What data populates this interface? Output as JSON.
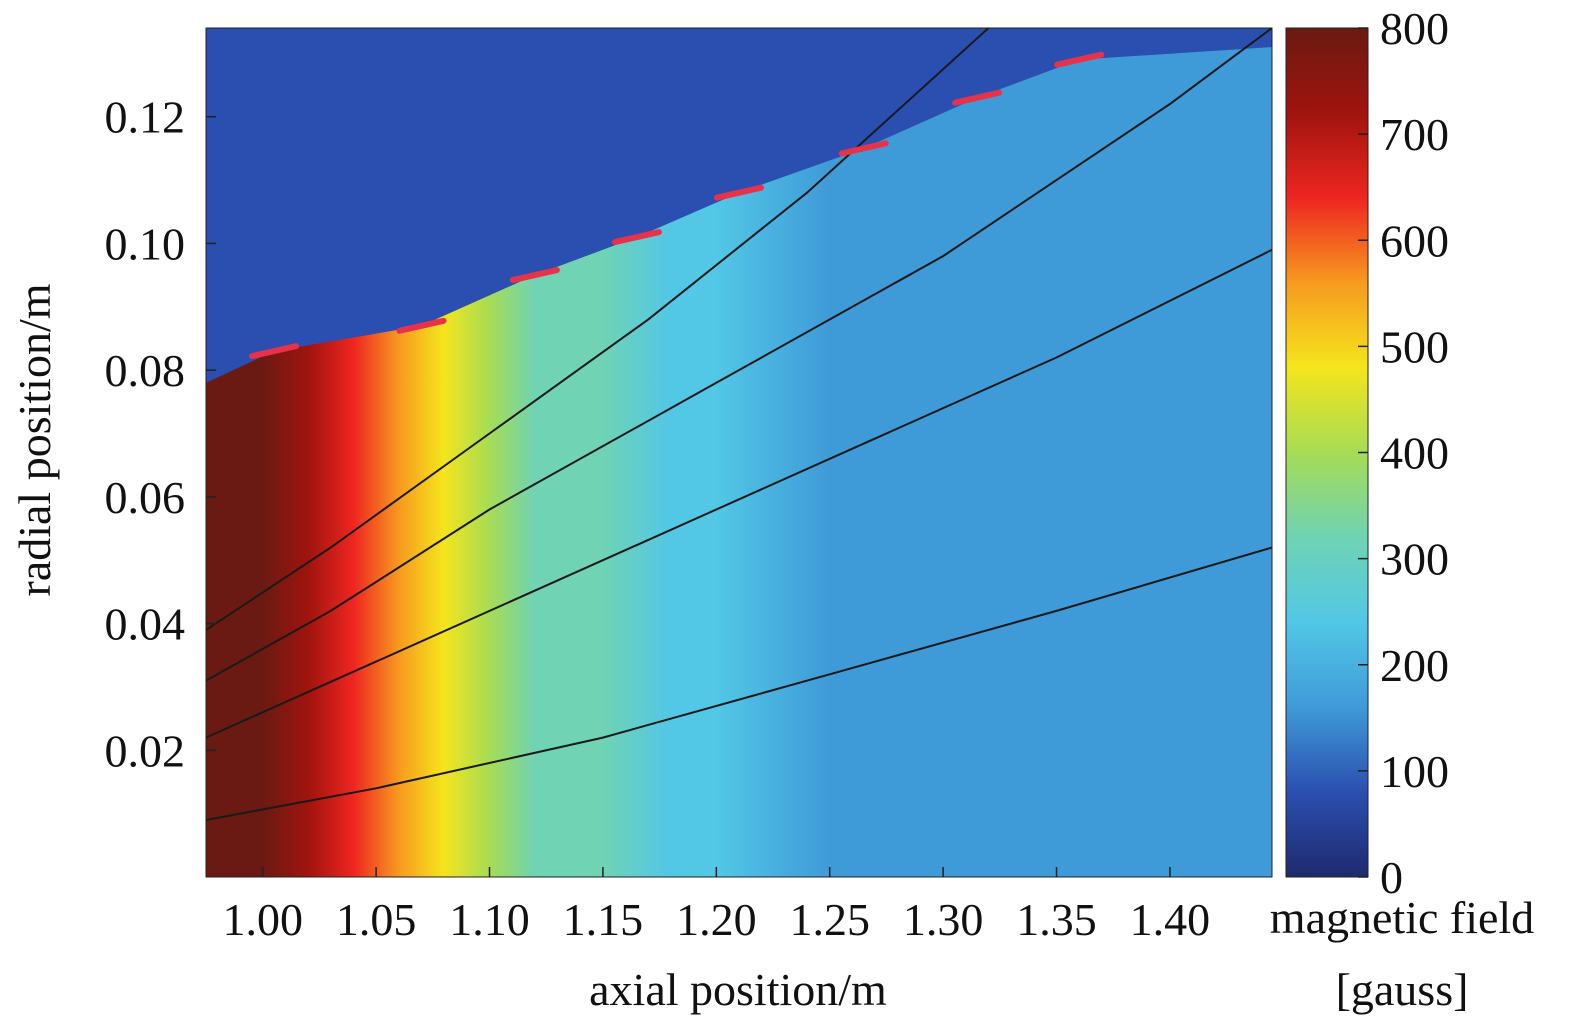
{
  "chart_data": {
    "type": "heatmap",
    "xlabel": "axial position/m",
    "ylabel": "radial position/m",
    "colorbar_label": [
      "magnetic field",
      "[gauss]"
    ],
    "xlim": [
      0.975,
      1.445
    ],
    "ylim": [
      0.0,
      0.134
    ],
    "xticks": [
      "1.00",
      "1.05",
      "1.10",
      "1.15",
      "1.20",
      "1.25",
      "1.30",
      "1.35",
      "1.40"
    ],
    "yticks": [
      "0.02",
      "0.04",
      "0.06",
      "0.08",
      "0.10",
      "0.12"
    ],
    "colorbar_ticks": [
      "0",
      "100",
      "200",
      "300",
      "400",
      "500",
      "600",
      "700",
      "800"
    ],
    "colorbar_range": [
      0,
      800
    ],
    "colormap": [
      "#1e2a6e",
      "#2b4fb0",
      "#3f9ad8",
      "#52c7e6",
      "#6fd3b4",
      "#a6dc55",
      "#f4e51c",
      "#f79a1f",
      "#ee2520",
      "#a0140e",
      "#6a1a12"
    ],
    "field_profile_gauss": {
      "x": [
        0.975,
        1.0,
        1.02,
        1.04,
        1.06,
        1.08,
        1.1,
        1.12,
        1.15,
        1.18,
        1.2,
        1.25,
        1.3,
        1.35,
        1.4,
        1.445
      ],
      "values": [
        800,
        780,
        720,
        620,
        520,
        440,
        380,
        330,
        280,
        230,
        200,
        165,
        150,
        140,
        135,
        130
      ]
    },
    "field_lines": [
      {
        "x": [
          0.975,
          1.05,
          1.15,
          1.25,
          1.35,
          1.445
        ],
        "y": [
          0.009,
          0.014,
          0.022,
          0.032,
          0.042,
          0.052
        ]
      },
      {
        "x": [
          0.975,
          1.05,
          1.15,
          1.25,
          1.35,
          1.445
        ],
        "y": [
          0.022,
          0.034,
          0.05,
          0.066,
          0.082,
          0.099
        ]
      },
      {
        "x": [
          0.975,
          1.03,
          1.1,
          1.2,
          1.3,
          1.4,
          1.445
        ],
        "y": [
          0.031,
          0.042,
          0.058,
          0.078,
          0.098,
          0.122,
          0.134
        ]
      },
      {
        "x": [
          0.975,
          1.03,
          1.1,
          1.17,
          1.24,
          1.32
        ],
        "y": [
          0.039,
          0.052,
          0.07,
          0.088,
          0.108,
          0.134
        ]
      }
    ],
    "coil_markers": {
      "x": [
        1.005,
        1.07,
        1.12,
        1.165,
        1.21,
        1.265,
        1.315,
        1.36
      ],
      "y": [
        0.083,
        0.087,
        0.095,
        0.101,
        0.108,
        0.115,
        0.123,
        0.129
      ]
    }
  }
}
